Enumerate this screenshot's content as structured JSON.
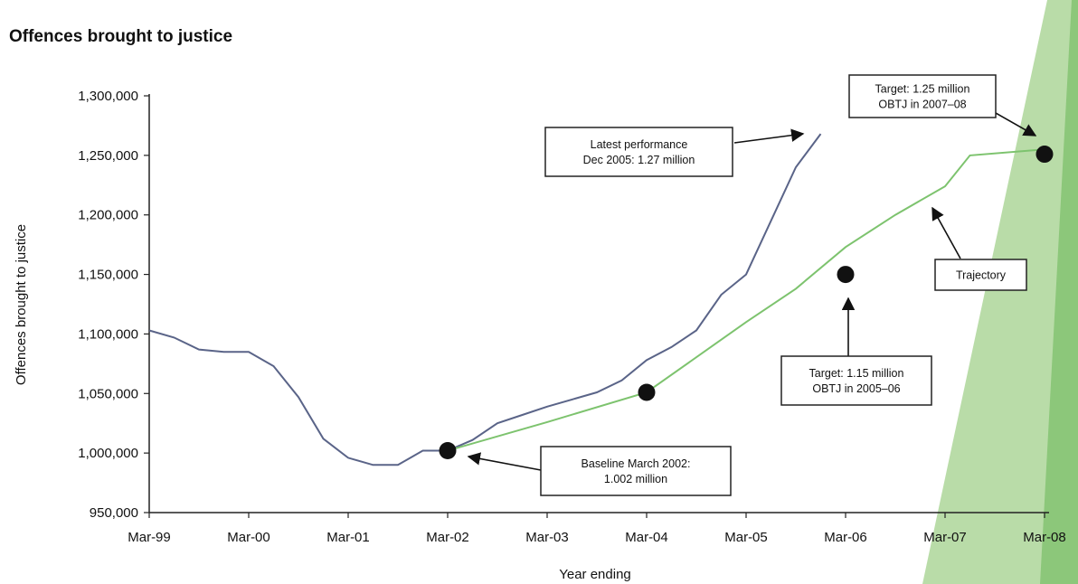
{
  "chart_data": {
    "type": "line",
    "title": "Offences brought to justice",
    "xlabel": "Year ending",
    "ylabel": "Offences brought to justice",
    "x_tick_labels": [
      "Mar-99",
      "Mar-00",
      "Mar-01",
      "Mar-02",
      "Mar-03",
      "Mar-04",
      "Mar-05",
      "Mar-06",
      "Mar-07",
      "Mar-08"
    ],
    "y_tick_labels": [
      "950,000",
      "1,000,000",
      "1,050,000",
      "1,100,000",
      "1,150,000",
      "1,200,000",
      "1,250,000",
      "1,300,000"
    ],
    "ylim": [
      950000,
      1300000
    ],
    "xlim": [
      1999,
      2008
    ],
    "grid": false,
    "series": [
      {
        "label_key": "actual",
        "color": "#5a6488",
        "points": [
          [
            1999.0,
            1103000
          ],
          [
            1999.25,
            1097000
          ],
          [
            1999.5,
            1087000
          ],
          [
            1999.75,
            1085000
          ],
          [
            2000.0,
            1085000
          ],
          [
            2000.25,
            1073000
          ],
          [
            2000.5,
            1047000
          ],
          [
            2000.75,
            1012000
          ],
          [
            2001.0,
            996000
          ],
          [
            2001.25,
            990000
          ],
          [
            2001.5,
            990000
          ],
          [
            2001.75,
            1002000
          ],
          [
            2002.0,
            1002000
          ],
          [
            2002.25,
            1011000
          ],
          [
            2002.5,
            1025000
          ],
          [
            2002.75,
            1032000
          ],
          [
            2003.0,
            1039000
          ],
          [
            2003.25,
            1045000
          ],
          [
            2003.5,
            1051000
          ],
          [
            2003.75,
            1061000
          ],
          [
            2004.0,
            1078000
          ],
          [
            2004.25,
            1089000
          ],
          [
            2004.5,
            1103000
          ],
          [
            2004.75,
            1133000
          ],
          [
            2005.0,
            1150000
          ],
          [
            2005.25,
            1195000
          ],
          [
            2005.5,
            1240000
          ],
          [
            2005.75,
            1268000
          ]
        ]
      },
      {
        "label_key": "trajectory",
        "color": "#7dc36e",
        "points": [
          [
            2002.0,
            1002000
          ],
          [
            2003.0,
            1026000
          ],
          [
            2004.0,
            1051000
          ],
          [
            2005.0,
            1110000
          ],
          [
            2005.5,
            1138000
          ],
          [
            2006.0,
            1173000
          ],
          [
            2006.5,
            1200000
          ],
          [
            2007.0,
            1224000
          ],
          [
            2007.25,
            1250000
          ],
          [
            2008.0,
            1255000
          ]
        ]
      }
    ],
    "markers": [
      {
        "x": 2002.0,
        "y": 1002000
      },
      {
        "x": 2004.0,
        "y": 1051000
      },
      {
        "x": 2006.0,
        "y": 1150000
      },
      {
        "x": 2008.0,
        "y": 1251000
      }
    ],
    "annotations": [
      {
        "key": "latest",
        "lines": [
          "Latest performance",
          "Dec 2005: 1.27 million"
        ]
      },
      {
        "key": "target0708",
        "lines": [
          "Target: 1.25 million",
          "OBTJ in 2007–08"
        ]
      },
      {
        "key": "trajectory",
        "lines": [
          "Trajectory"
        ]
      },
      {
        "key": "target0506",
        "lines": [
          "Target: 1.15 million",
          "OBTJ in 2005–06"
        ]
      },
      {
        "key": "baseline",
        "lines": [
          "Baseline March 2002:",
          "1.002 million"
        ]
      }
    ],
    "colors": {
      "axis": "#222222",
      "marker": "#111111",
      "band_light": "#b9dca8",
      "band_dark": "#8cc77a"
    }
  }
}
